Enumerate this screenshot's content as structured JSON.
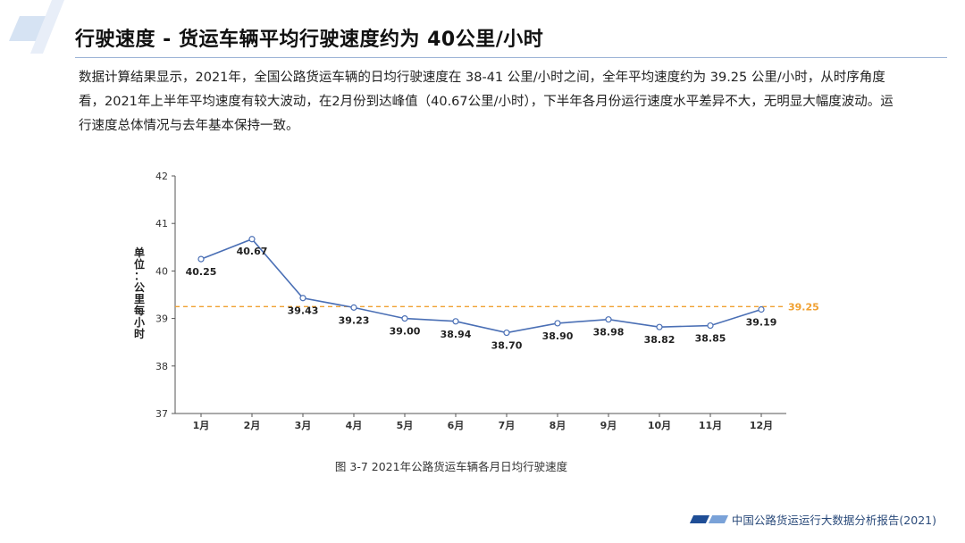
{
  "header": {
    "title": "行驶速度 - 货运车辆平均行驶速度约为 40公里/小时"
  },
  "paragraph": {
    "text": "数据计算结果显示，2021年，全国公路货运车辆的日均行驶速度在 38-41 公里/小时之间，全年平均速度约为 39.25 公里/小时，从时序角度看，2021年上半年平均速度有较大波动，在2月份到达峰值（40.67公里/小时），下半年各月份运行速度水平差异不大，无明显大幅度波动。运行速度总体情况与去年基本保持一致。"
  },
  "chart_data": {
    "type": "line",
    "categories": [
      "1月",
      "2月",
      "3月",
      "4月",
      "5月",
      "6月",
      "7月",
      "8月",
      "9月",
      "10月",
      "11月",
      "12月"
    ],
    "values": [
      40.25,
      40.67,
      39.43,
      39.23,
      39.0,
      38.94,
      38.7,
      38.9,
      38.98,
      38.82,
      38.85,
      39.19
    ],
    "value_labels": [
      "40.25",
      "40.67",
      "39.43",
      "39.23",
      "39.00",
      "38.94",
      "38.70",
      "38.90",
      "38.98",
      "38.82",
      "38.85",
      "39.19"
    ],
    "ylabel": "单位：公里每小时",
    "ylim": [
      37,
      42
    ],
    "yticks": [
      37,
      38,
      39,
      40,
      41,
      42
    ],
    "reference_line": {
      "value": 39.25,
      "label": "39.25",
      "color": "#f0a030"
    },
    "line_color": "#4a6fb5",
    "grid": false
  },
  "caption": "图 3-7 2021年公路货运车辆各月日均行驶速度",
  "footer": {
    "text": "中国公路货运运行大数据分析报告(2021)"
  }
}
